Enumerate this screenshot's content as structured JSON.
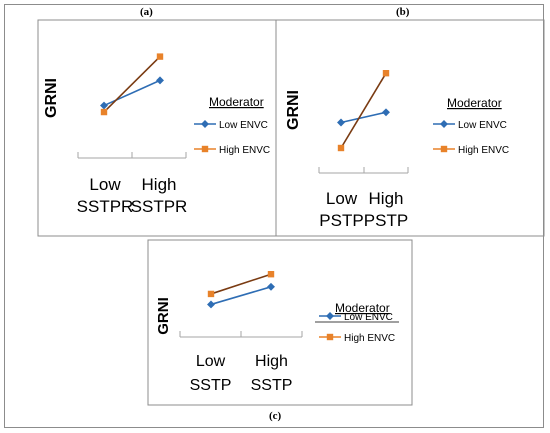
{
  "labels": {
    "a": "(a)",
    "b": "(b)",
    "c": "(c)"
  },
  "colors": {
    "low": "#2e6db4",
    "high": "#e8822a",
    "axis": "#a6a6a6",
    "border": "#8c8c8c"
  },
  "chart_data": [
    {
      "id": "a",
      "type": "line",
      "ylabel": "GRNI",
      "categories": [
        [
          "Low",
          "SSTPR"
        ],
        [
          "High",
          "SSTPR"
        ]
      ],
      "legend_title": "Moderator",
      "legend_position": "right",
      "series": [
        {
          "name": "Low ENVC",
          "values": [
            0.27,
            0.62
          ]
        },
        {
          "name": "High ENVC",
          "values": [
            0.18,
            0.95
          ]
        }
      ],
      "ylim": [
        0,
        1
      ]
    },
    {
      "id": "b",
      "type": "line",
      "ylabel": "GRNI",
      "categories": [
        [
          "Low",
          "PSTP"
        ],
        [
          "High",
          "PSTP"
        ]
      ],
      "legend_title": "Moderator",
      "legend_position": "right",
      "series": [
        {
          "name": "Low ENVC",
          "values": [
            0.3,
            0.42
          ]
        },
        {
          "name": "High ENVC",
          "values": [
            0.0,
            0.88
          ]
        }
      ],
      "ylim": [
        0,
        1
      ]
    },
    {
      "id": "c",
      "type": "line",
      "ylabel": "GRNI",
      "categories": [
        [
          "Low",
          "SSTP"
        ],
        [
          "High",
          "SSTP"
        ]
      ],
      "legend_title": "Moderator",
      "legend_position": "right",
      "series": [
        {
          "name": "Low ENVC",
          "values": [
            0.18,
            0.6
          ]
        },
        {
          "name": "High ENVC",
          "values": [
            0.43,
            0.9
          ]
        }
      ],
      "ylim": [
        0,
        1
      ]
    }
  ]
}
